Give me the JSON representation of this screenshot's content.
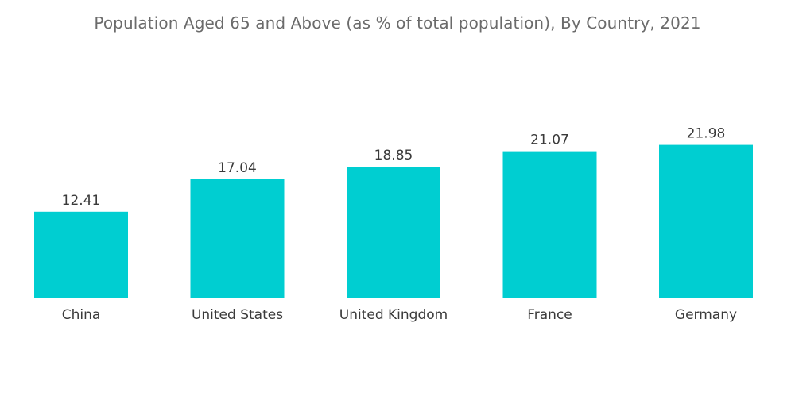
{
  "title": "Population Aged 65 and Above (as % of total population), By Country, 2021",
  "colors": {
    "bar": "#00ced1",
    "text": "#3a3a3a",
    "title": "#6b6b6b"
  },
  "chart_data": {
    "type": "bar",
    "title": "Population Aged 65 and Above (as % of total population), By Country, 2021",
    "xlabel": "",
    "ylabel": "",
    "categories": [
      "China",
      "United States",
      "United Kingdom",
      "France",
      "Germany"
    ],
    "values": [
      12.41,
      17.04,
      18.85,
      21.07,
      21.98
    ],
    "value_labels": [
      "12.41",
      "17.04",
      "18.85",
      "21.07",
      "21.98"
    ],
    "ylim": [
      0,
      22
    ],
    "grid": false,
    "legend": "none"
  }
}
